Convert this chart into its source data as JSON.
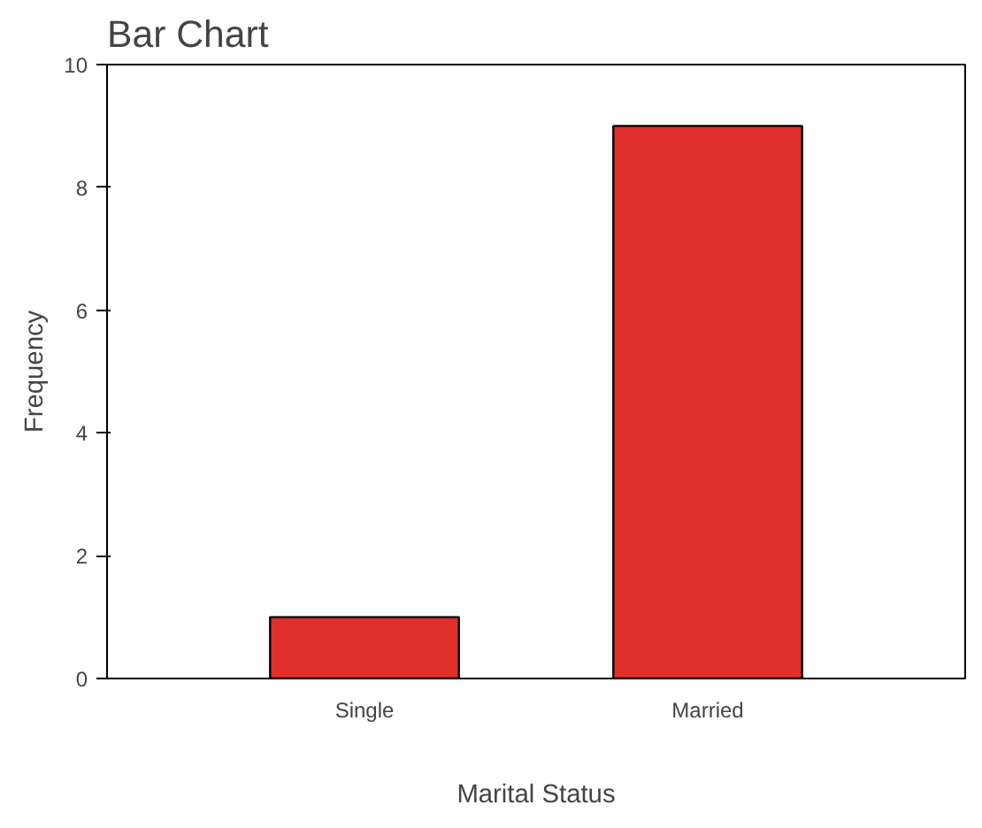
{
  "chart_data": {
    "type": "bar",
    "title": "Bar Chart",
    "xlabel": "Marital Status",
    "ylabel": "Frequency",
    "categories": [
      "Single",
      "Married"
    ],
    "values": [
      1,
      9
    ],
    "color": "#e0302c",
    "ylim": [
      0,
      10
    ],
    "yticks": [
      0,
      2,
      4,
      6,
      8,
      10
    ],
    "grid": false
  }
}
